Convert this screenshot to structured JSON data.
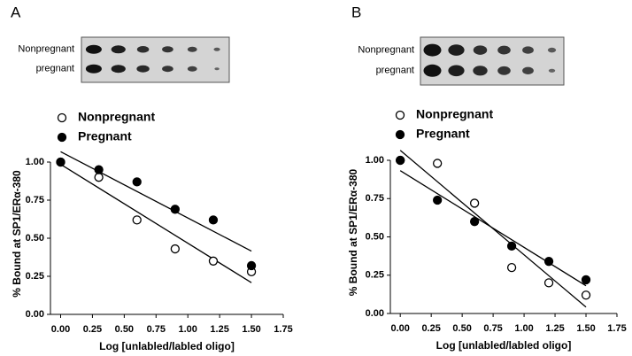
{
  "chart_data": [
    {
      "type": "scatter",
      "panel": "A",
      "blot_labels": [
        "Nonpregnant",
        "pregnant"
      ],
      "x_label": "Log [unlabled/labled oligo]",
      "y_label": "% Bound at SP1/ERα-380",
      "x": [
        0,
        0.3,
        0.6,
        0.9,
        1.2,
        1.5
      ],
      "series": [
        {
          "name": "Nonpregnant",
          "color": "#ffffff",
          "values": [
            1.0,
            0.9,
            0.62,
            0.43,
            0.35,
            0.28
          ]
        },
        {
          "name": "Pregnant",
          "color": "#000000",
          "values": [
            1.0,
            0.95,
            0.87,
            0.69,
            0.62,
            0.32
          ]
        }
      ],
      "xlim": [
        -0.08,
        1.75
      ],
      "ylim": [
        0,
        1
      ],
      "xticks": [
        {
          "value": 0,
          "label": "0.00"
        },
        {
          "value": 0.25,
          "label": "0.25"
        },
        {
          "value": 0.5,
          "label": "0.50"
        },
        {
          "value": 0.75,
          "label": "0.75"
        },
        {
          "value": 1,
          "label": "1.00"
        },
        {
          "value": 1.25,
          "label": "1.25"
        },
        {
          "value": 1.5,
          "label": "1.50"
        },
        {
          "value": 1.75,
          "label": "1.75"
        }
      ],
      "yticks": [
        {
          "value": 0,
          "label": "0.00"
        },
        {
          "value": 0.25,
          "label": "0.25"
        },
        {
          "value": 0.5,
          "label": "0.50"
        },
        {
          "value": 0.75,
          "label": "0.75"
        },
        {
          "value": 1,
          "label": "1.00"
        }
      ],
      "regression": true
    },
    {
      "type": "scatter",
      "panel": "B",
      "blot_labels": [
        "Nonpregnant",
        "pregnant"
      ],
      "x_label": "Log [unlabled/labled oligo]",
      "y_label": "% Bound at SP1/ERα-380",
      "x": [
        0,
        0.3,
        0.6,
        0.9,
        1.2,
        1.5
      ],
      "series": [
        {
          "name": "Nonpregnant",
          "color": "#ffffff",
          "values": [
            1.0,
            0.98,
            0.72,
            0.3,
            0.2,
            0.12
          ]
        },
        {
          "name": "Pregnant",
          "color": "#000000",
          "values": [
            1.0,
            0.74,
            0.6,
            0.44,
            0.34,
            0.22
          ]
        }
      ],
      "xlim": [
        -0.08,
        1.75
      ],
      "ylim": [
        0,
        1
      ],
      "xticks": [
        {
          "value": 0,
          "label": "0.00"
        },
        {
          "value": 0.25,
          "label": "0.25"
        },
        {
          "value": 0.5,
          "label": "0.50"
        },
        {
          "value": 0.75,
          "label": "0.75"
        },
        {
          "value": 1,
          "label": "1.00"
        },
        {
          "value": 1.25,
          "label": "1.25"
        },
        {
          "value": 1.5,
          "label": "1.50"
        },
        {
          "value": 1.75,
          "label": "1.75"
        }
      ],
      "yticks": [
        {
          "value": 0,
          "label": "0.00"
        },
        {
          "value": 0.25,
          "label": "0.25"
        },
        {
          "value": 0.5,
          "label": "0.50"
        },
        {
          "value": 0.75,
          "label": "0.75"
        },
        {
          "value": 1,
          "label": "1.00"
        }
      ],
      "regression": true
    }
  ]
}
